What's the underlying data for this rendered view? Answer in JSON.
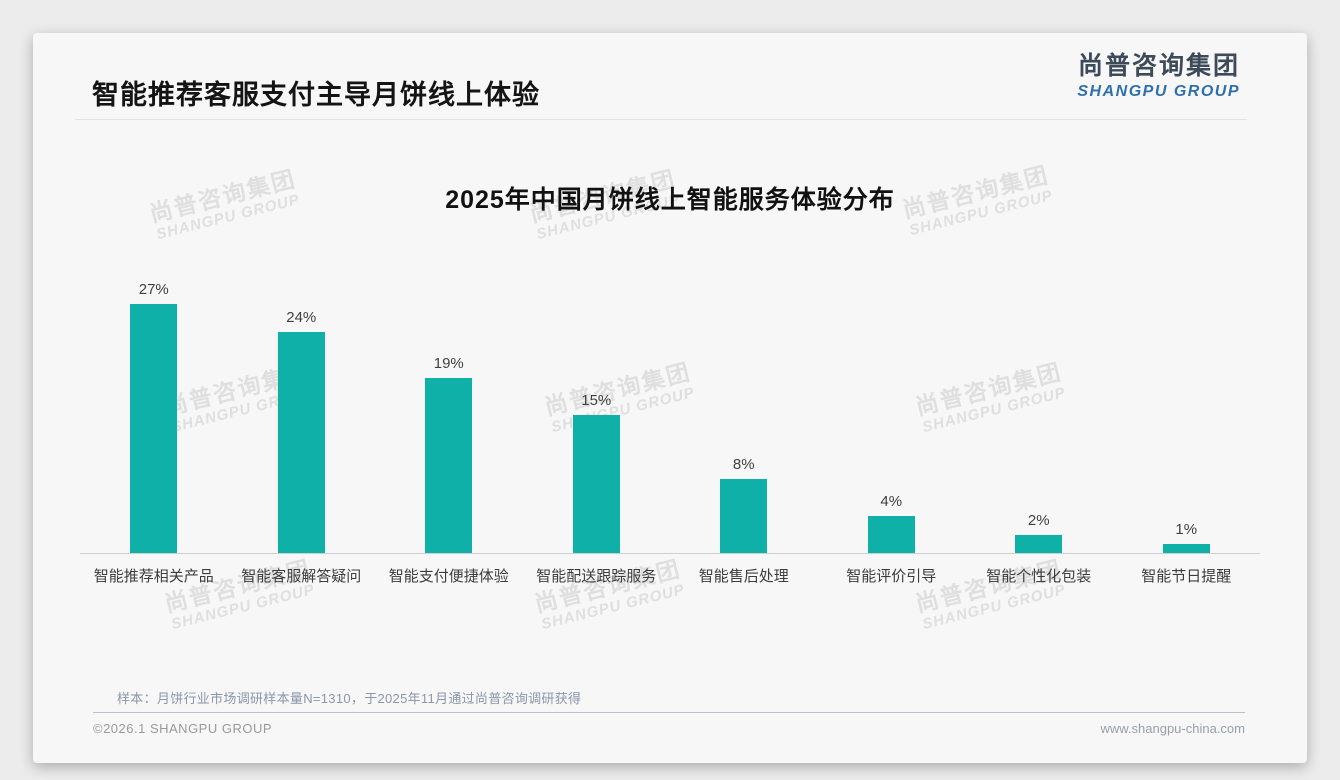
{
  "header": {
    "title": "智能推荐客服支付主导月饼线上体验",
    "logo": {
      "cn": "尚普咨询集团",
      "en": "SHANGPU GROUP"
    }
  },
  "watermark": {
    "line1": "尚普咨询集团",
    "line2": "SHANGPU GROUP"
  },
  "chart_data": {
    "type": "bar",
    "title": "2025年中国月饼线上智能服务体验分布",
    "categories": [
      "智能推荐相关产品",
      "智能客服解答疑问",
      "智能支付便捷体验",
      "智能配送跟踪服务",
      "智能售后处理",
      "智能评价引导",
      "智能个性化包装",
      "智能节日提醒"
    ],
    "values": [
      27,
      24,
      19,
      15,
      8,
      4,
      2,
      1
    ],
    "value_labels": [
      "27%",
      "24%",
      "19%",
      "15%",
      "8%",
      "4%",
      "2%",
      "1%"
    ],
    "bar_color": "#0fb0a8",
    "xlabel": "",
    "ylabel": "",
    "ylim": [
      0,
      30
    ],
    "grid": false,
    "legend": false
  },
  "footer": {
    "sample_note": "样本：月饼行业市场调研样本量N=1310，于2025年11月通过尚普咨询调研获得",
    "copyright": "©2026.1 SHANGPU GROUP",
    "website": "www.shangpu-china.com"
  }
}
